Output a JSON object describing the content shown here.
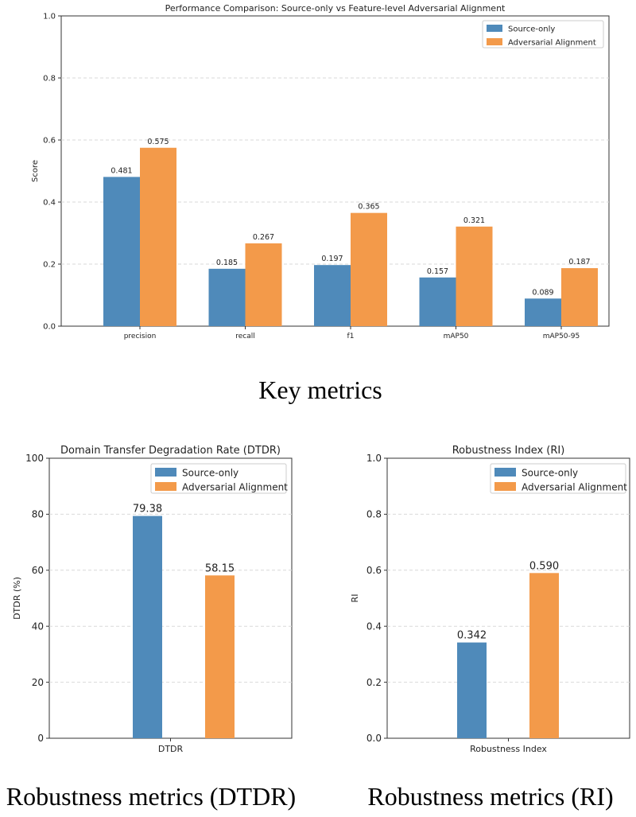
{
  "colors": {
    "source": "#4f8aba",
    "adversarial": "#f39a4a",
    "grid": "#d9d9d9"
  },
  "captions": {
    "key": "Key metrics",
    "dtdr": "Robustness metrics (DTDR)",
    "ri": "Robustness metrics (RI)"
  },
  "chart_data": [
    {
      "type": "bar",
      "title": "Performance Comparison: Source-only vs Feature-level Adversarial Alignment",
      "xlabel": "",
      "ylabel": "Score",
      "categories": [
        "precision",
        "recall",
        "f1",
        "mAP50",
        "mAP50-95"
      ],
      "series": [
        {
          "name": "Source-only",
          "values": [
            0.481,
            0.185,
            0.197,
            0.157,
            0.089
          ]
        },
        {
          "name": "Adversarial Alignment",
          "values": [
            0.575,
            0.267,
            0.365,
            0.321,
            0.187
          ]
        }
      ],
      "value_labels": [
        [
          "0.481",
          "0.185",
          "0.197",
          "0.157",
          "0.089"
        ],
        [
          "0.575",
          "0.267",
          "0.365",
          "0.321",
          "0.187"
        ]
      ],
      "ylim": [
        0,
        1.0
      ],
      "yticks": [
        "0.0",
        "0.2",
        "0.4",
        "0.6",
        "0.8",
        "1.0"
      ],
      "grid": "horizontal dashed",
      "legend": "top-right"
    },
    {
      "type": "bar",
      "title": "Domain Transfer Degradation Rate (DTDR)",
      "xlabel": "",
      "ylabel": "DTDR (%)",
      "categories": [
        "DTDR"
      ],
      "series": [
        {
          "name": "Source-only",
          "values": [
            79.38
          ]
        },
        {
          "name": "Adversarial Alignment",
          "values": [
            58.15
          ]
        }
      ],
      "value_labels": [
        [
          "79.38"
        ],
        [
          "58.15"
        ]
      ],
      "ylim": [
        0,
        100
      ],
      "yticks": [
        "0",
        "20",
        "40",
        "60",
        "80",
        "100"
      ],
      "grid": "horizontal dashed",
      "legend": "top-right"
    },
    {
      "type": "bar",
      "title": "Robustness Index (RI)",
      "xlabel": "",
      "ylabel": "RI",
      "categories": [
        "Robustness Index"
      ],
      "series": [
        {
          "name": "Source-only",
          "values": [
            0.342
          ]
        },
        {
          "name": "Adversarial Alignment",
          "values": [
            0.59
          ]
        }
      ],
      "value_labels": [
        [
          "0.342"
        ],
        [
          "0.590"
        ]
      ],
      "ylim": [
        0,
        1.0
      ],
      "yticks": [
        "0.0",
        "0.2",
        "0.4",
        "0.6",
        "0.8",
        "1.0"
      ],
      "grid": "horizontal dashed",
      "legend": "top-right"
    }
  ]
}
